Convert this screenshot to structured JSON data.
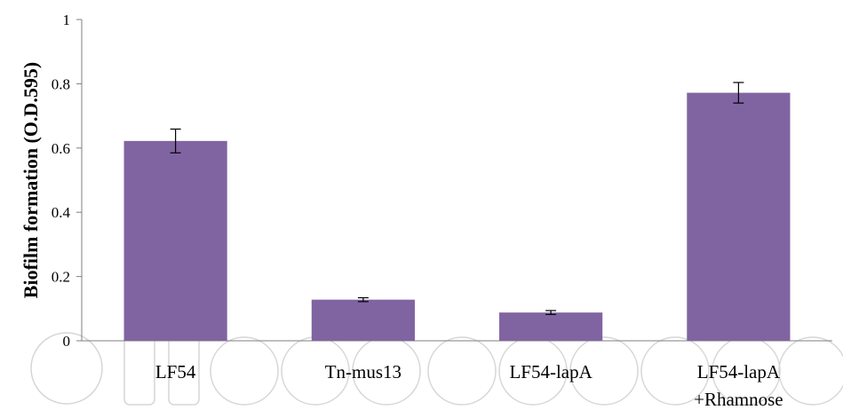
{
  "chart_data": {
    "type": "bar",
    "categories": [
      [
        "LF54"
      ],
      [
        "Tn-mus13"
      ],
      [
        "LF54-lapA"
      ],
      [
        "LF54-lapA",
        "+Rhamnose"
      ]
    ],
    "values": [
      0.622,
      0.128,
      0.088,
      0.772
    ],
    "errors": [
      0.037,
      0.006,
      0.006,
      0.032
    ],
    "title": "",
    "xlabel": "",
    "ylabel": "Biofilm formation (O.D.595)",
    "ylim": [
      0,
      1
    ],
    "yticks": [
      0,
      0.2,
      0.4,
      0.6,
      0.8,
      1
    ],
    "ytick_labels": [
      "0",
      "0.2",
      "0.4",
      "0.6",
      "0.8",
      "1"
    ],
    "bar_color": "#8064a2",
    "grid": false,
    "legend": "none"
  }
}
